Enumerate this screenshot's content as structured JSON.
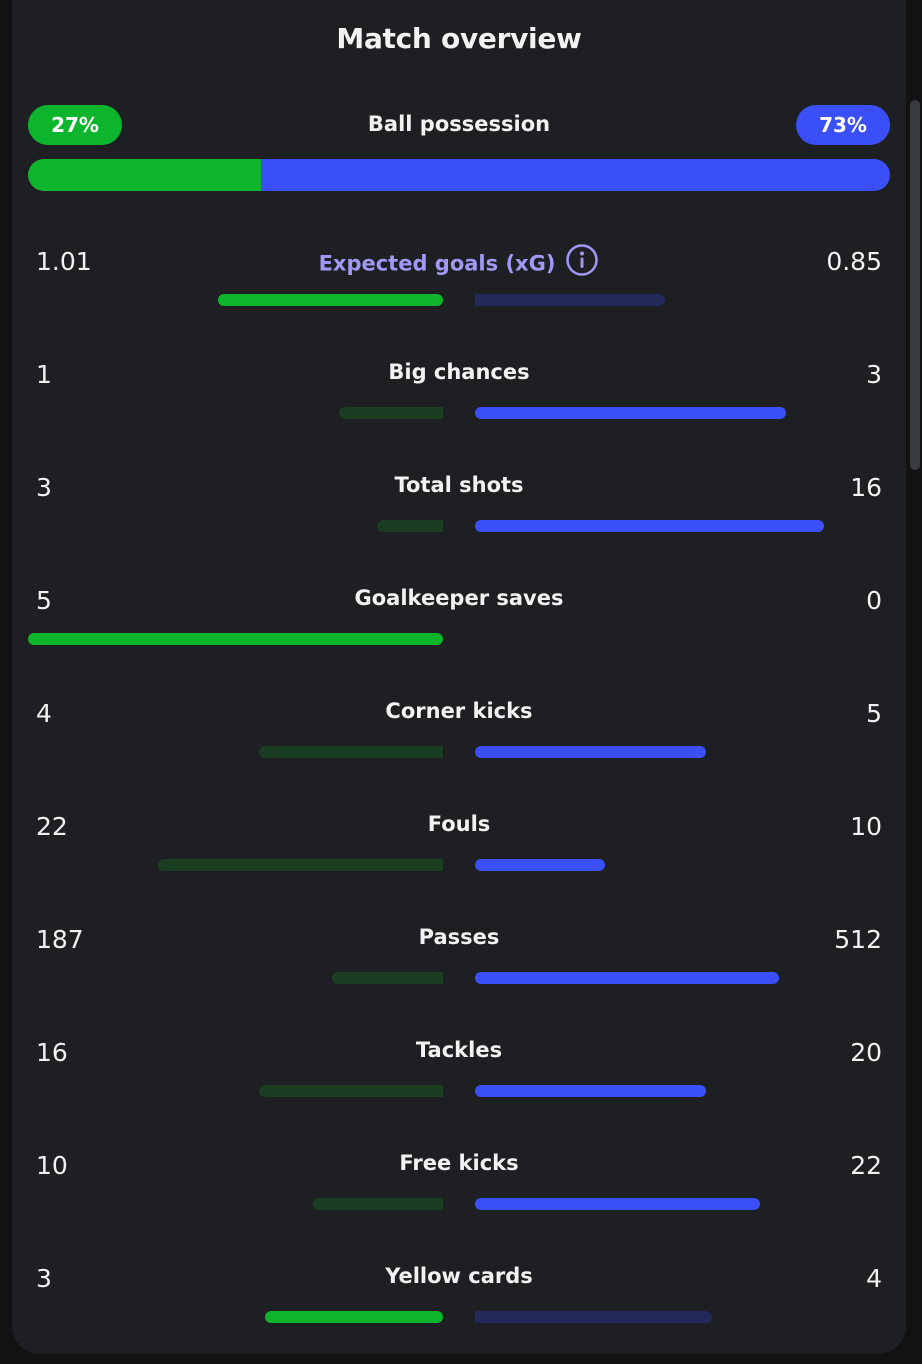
{
  "title": "Match overview",
  "colors": {
    "home_strong": "#0db52c",
    "home_dim": "#1b3d22",
    "away_strong": "#3a4ff5",
    "away_dim": "#23295a",
    "xg_label": "#9f99f5"
  },
  "possession": {
    "label": "Ball possession",
    "home_text": "27%",
    "away_text": "73%",
    "home_fraction": 0.27,
    "away_fraction": 0.73
  },
  "stats": [
    {
      "label": "Expected goals (xG)",
      "home": "1.01",
      "away": "0.85",
      "home_fraction": 0.543,
      "away_fraction": 0.457,
      "winner": "home",
      "info_icon": "info-icon",
      "highlight": true
    },
    {
      "label": "Big chances",
      "home": "1",
      "away": "3",
      "home_fraction": 0.25,
      "away_fraction": 0.75,
      "winner": "away"
    },
    {
      "label": "Total shots",
      "home": "3",
      "away": "16",
      "home_fraction": 0.158,
      "away_fraction": 0.842,
      "winner": "away"
    },
    {
      "label": "Goalkeeper saves",
      "home": "5",
      "away": "0",
      "home_fraction": 1.0,
      "away_fraction": 0.0,
      "winner": "home"
    },
    {
      "label": "Corner kicks",
      "home": "4",
      "away": "5",
      "home_fraction": 0.444,
      "away_fraction": 0.556,
      "winner": "away"
    },
    {
      "label": "Fouls",
      "home": "22",
      "away": "10",
      "home_fraction": 0.6875,
      "away_fraction": 0.3125,
      "winner": "away"
    },
    {
      "label": "Passes",
      "home": "187",
      "away": "512",
      "home_fraction": 0.268,
      "away_fraction": 0.732,
      "winner": "away"
    },
    {
      "label": "Tackles",
      "home": "16",
      "away": "20",
      "home_fraction": 0.444,
      "away_fraction": 0.556,
      "winner": "away"
    },
    {
      "label": "Free kicks",
      "home": "10",
      "away": "22",
      "home_fraction": 0.3125,
      "away_fraction": 0.6875,
      "winner": "away"
    },
    {
      "label": "Yellow cards",
      "home": "3",
      "away": "4",
      "home_fraction": 0.429,
      "away_fraction": 0.571,
      "winner": "home"
    }
  ]
}
